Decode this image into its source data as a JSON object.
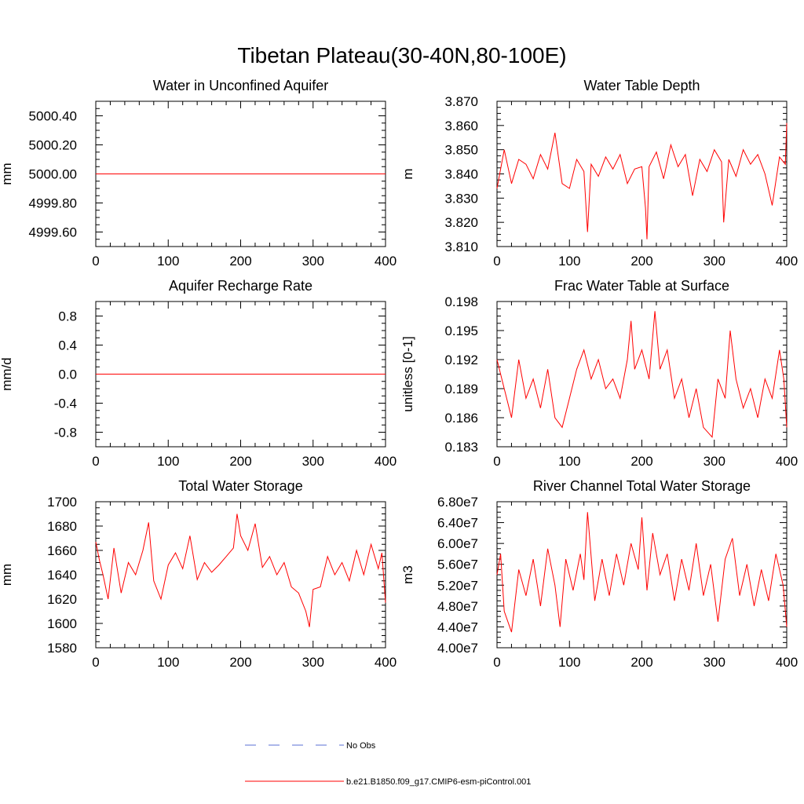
{
  "figure_title": "Tibetan Plateau(30-40N,80-100E)",
  "colors": {
    "model": "#ff0000",
    "obs": "#5a6fd6",
    "axis": "#000000"
  },
  "legend": [
    {
      "label": "No Obs",
      "style": "dashed",
      "color": "#5a6fd6"
    },
    {
      "label": "b.e21.B1850.f09_g17.CMIP6-esm-piControl.001",
      "style": "solid",
      "color": "#ff0000"
    }
  ],
  "chart_data": [
    {
      "type": "line",
      "title": "Water in Unconfined Aquifer",
      "xlabel": "",
      "ylabel": "mm",
      "xlim": [
        0,
        400
      ],
      "ylim": [
        4999.5,
        5000.5
      ],
      "xticks": [
        0,
        100,
        200,
        300,
        400
      ],
      "xtick_labels": [
        "0",
        "100",
        "200",
        "300",
        "400"
      ],
      "yticks": [
        4999.6,
        4999.8,
        5000.0,
        5000.2,
        5000.4
      ],
      "ytick_labels": [
        "4999.60",
        "4999.80",
        "5000.00",
        "5000.20",
        "5000.40"
      ],
      "series": [
        {
          "name": "b.e21.B1850.f09_g17.CMIP6-esm-piControl.001",
          "x": [
            0,
            400
          ],
          "values": [
            5000.0,
            5000.0
          ]
        }
      ]
    },
    {
      "type": "line",
      "title": "Water Table Depth",
      "xlabel": "",
      "ylabel": "m",
      "xlim": [
        0,
        400
      ],
      "ylim": [
        3.81,
        3.87
      ],
      "xticks": [
        0,
        100,
        200,
        300,
        400
      ],
      "xtick_labels": [
        "0",
        "100",
        "200",
        "300",
        "400"
      ],
      "yticks": [
        3.81,
        3.82,
        3.83,
        3.84,
        3.85,
        3.86,
        3.87
      ],
      "ytick_labels": [
        "3.810",
        "3.820",
        "3.830",
        "3.840",
        "3.850",
        "3.860",
        "3.870"
      ],
      "series": [
        {
          "name": "b.e21.B1850.f09_g17.CMIP6-esm-piControl.001",
          "x": [
            0,
            10,
            20,
            30,
            40,
            50,
            60,
            70,
            80,
            90,
            100,
            110,
            120,
            125,
            130,
            140,
            150,
            160,
            170,
            180,
            190,
            200,
            205,
            207,
            210,
            220,
            230,
            240,
            250,
            260,
            270,
            280,
            290,
            300,
            310,
            313,
            320,
            330,
            340,
            350,
            360,
            370,
            380,
            390,
            398,
            400
          ],
          "values": [
            3.834,
            3.85,
            3.836,
            3.846,
            3.844,
            3.838,
            3.848,
            3.842,
            3.857,
            3.836,
            3.834,
            3.846,
            3.841,
            3.816,
            3.844,
            3.839,
            3.847,
            3.842,
            3.848,
            3.836,
            3.842,
            3.843,
            3.826,
            3.813,
            3.843,
            3.849,
            3.838,
            3.852,
            3.843,
            3.848,
            3.831,
            3.846,
            3.841,
            3.85,
            3.845,
            3.82,
            3.846,
            3.839,
            3.85,
            3.844,
            3.848,
            3.84,
            3.827,
            3.847,
            3.844,
            3.861
          ]
        }
      ]
    },
    {
      "type": "line",
      "title": "Aquifer Recharge Rate",
      "xlabel": "",
      "ylabel": "mm/d",
      "xlim": [
        0,
        400
      ],
      "ylim": [
        -1.0,
        1.0
      ],
      "xticks": [
        0,
        100,
        200,
        300,
        400
      ],
      "xtick_labels": [
        "0",
        "100",
        "200",
        "300",
        "400"
      ],
      "yticks": [
        -0.8,
        -0.4,
        0.0,
        0.4,
        0.8
      ],
      "ytick_labels": [
        "-0.8",
        "-0.4",
        "0.0",
        "0.4",
        "0.8"
      ],
      "series": [
        {
          "name": "b.e21.B1850.f09_g17.CMIP6-esm-piControl.001",
          "x": [
            0,
            400
          ],
          "values": [
            0.0,
            0.0
          ]
        }
      ]
    },
    {
      "type": "line",
      "title": "Frac Water Table at Surface",
      "xlabel": "",
      "ylabel": "unitless [0-1]",
      "xlim": [
        0,
        400
      ],
      "ylim": [
        0.183,
        0.198
      ],
      "xticks": [
        0,
        100,
        200,
        300,
        400
      ],
      "xtick_labels": [
        "0",
        "100",
        "200",
        "300",
        "400"
      ],
      "yticks": [
        0.183,
        0.186,
        0.189,
        0.192,
        0.195,
        0.198
      ],
      "ytick_labels": [
        "0.183",
        "0.186",
        "0.189",
        "0.192",
        "0.195",
        "0.198"
      ],
      "series": [
        {
          "name": "b.e21.B1850.f09_g17.CMIP6-esm-piControl.001",
          "x": [
            0,
            10,
            20,
            30,
            40,
            50,
            60,
            70,
            80,
            90,
            100,
            110,
            120,
            130,
            140,
            150,
            160,
            170,
            180,
            185,
            190,
            200,
            210,
            218,
            225,
            235,
            245,
            255,
            265,
            275,
            285,
            297,
            305,
            315,
            322,
            330,
            340,
            350,
            360,
            370,
            380,
            390,
            396,
            400
          ],
          "values": [
            0.192,
            0.189,
            0.186,
            0.192,
            0.188,
            0.19,
            0.187,
            0.191,
            0.186,
            0.185,
            0.188,
            0.191,
            0.193,
            0.19,
            0.192,
            0.189,
            0.19,
            0.188,
            0.192,
            0.196,
            0.191,
            0.193,
            0.19,
            0.197,
            0.191,
            0.193,
            0.188,
            0.19,
            0.186,
            0.189,
            0.185,
            0.184,
            0.19,
            0.188,
            0.195,
            0.19,
            0.187,
            0.189,
            0.186,
            0.19,
            0.188,
            0.193,
            0.19,
            0.185
          ]
        }
      ]
    },
    {
      "type": "line",
      "title": "Total Water Storage",
      "xlabel": "",
      "ylabel": "mm",
      "xlim": [
        0,
        400
      ],
      "ylim": [
        1580,
        1700
      ],
      "xticks": [
        0,
        100,
        200,
        300,
        400
      ],
      "xtick_labels": [
        "0",
        "100",
        "200",
        "300",
        "400"
      ],
      "yticks": [
        1580,
        1600,
        1620,
        1640,
        1660,
        1680,
        1700
      ],
      "ytick_labels": [
        "1580",
        "1600",
        "1620",
        "1640",
        "1660",
        "1680",
        "1700"
      ],
      "series": [
        {
          "name": "b.e21.B1850.f09_g17.CMIP6-esm-piControl.001",
          "x": [
            0,
            5,
            10,
            17,
            25,
            35,
            45,
            55,
            65,
            73,
            80,
            90,
            100,
            110,
            120,
            130,
            140,
            150,
            160,
            170,
            180,
            190,
            195,
            200,
            210,
            220,
            230,
            240,
            250,
            260,
            270,
            280,
            290,
            295,
            300,
            310,
            320,
            330,
            340,
            350,
            360,
            370,
            380,
            390,
            395,
            400
          ],
          "values": [
            1667,
            1652,
            1640,
            1620,
            1662,
            1625,
            1650,
            1640,
            1660,
            1683,
            1635,
            1620,
            1648,
            1658,
            1645,
            1672,
            1636,
            1650,
            1642,
            1648,
            1655,
            1662,
            1690,
            1672,
            1660,
            1682,
            1646,
            1655,
            1640,
            1650,
            1630,
            1625,
            1610,
            1597,
            1628,
            1630,
            1655,
            1640,
            1650,
            1635,
            1660,
            1640,
            1665,
            1645,
            1658,
            1617
          ]
        }
      ]
    },
    {
      "type": "line",
      "title": "River Channel Total Water Storage",
      "xlabel": "",
      "ylabel": "m3",
      "xlim": [
        0,
        400
      ],
      "ylim": [
        40000000,
        68000000
      ],
      "xticks": [
        0,
        100,
        200,
        300,
        400
      ],
      "xtick_labels": [
        "0",
        "100",
        "200",
        "300",
        "400"
      ],
      "yticks": [
        40000000,
        44000000,
        48000000,
        52000000,
        56000000,
        60000000,
        64000000,
        68000000
      ],
      "ytick_labels": [
        "4.00e7",
        "4.40e7",
        "4.80e7",
        "5.20e7",
        "5.60e7",
        "6.00e7",
        "6.40e7",
        "6.80e7"
      ],
      "series": [
        {
          "name": "b.e21.B1850.f09_g17.CMIP6-esm-piControl.001",
          "x": [
            0,
            5,
            10,
            20,
            30,
            40,
            50,
            60,
            70,
            80,
            87,
            95,
            105,
            115,
            120,
            125,
            135,
            145,
            155,
            165,
            175,
            185,
            195,
            200,
            207,
            215,
            225,
            235,
            245,
            255,
            265,
            275,
            285,
            295,
            305,
            315,
            325,
            335,
            345,
            355,
            365,
            375,
            385,
            395,
            400
          ],
          "values": [
            54000000,
            58000000,
            47000000,
            43000000,
            55000000,
            50000000,
            57000000,
            48000000,
            59000000,
            52000000,
            44000000,
            57000000,
            51000000,
            58000000,
            53000000,
            66000000,
            49000000,
            57000000,
            50000000,
            58000000,
            52000000,
            60000000,
            55000000,
            65000000,
            51000000,
            62000000,
            54000000,
            58000000,
            49000000,
            57000000,
            51000000,
            60000000,
            50000000,
            56000000,
            45000000,
            57000000,
            61000000,
            50000000,
            56000000,
            48000000,
            55000000,
            49000000,
            58000000,
            52000000,
            44000000
          ]
        }
      ]
    }
  ]
}
